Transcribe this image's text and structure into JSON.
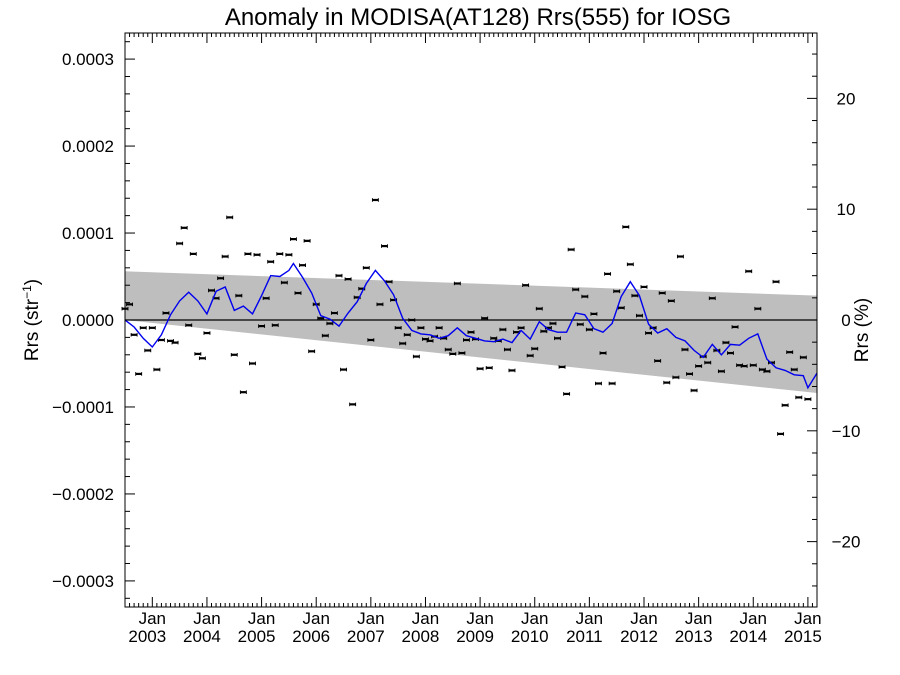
{
  "chart_data": {
    "type": "scatter",
    "title": "Anomaly in MODISA(AT128) Rrs(555) for IOSG",
    "ylabel_left_text": "Rrs (str",
    "ylabel_left_sup": "−1",
    "ylabel_left_close": ")",
    "ylabel_right": "Rrs (%)",
    "xlabel": "",
    "x_start": "2002-07",
    "x_end": "2015-03",
    "ylim": [
      -0.00033,
      0.00033
    ],
    "ylim_right": [
      -25.9,
      25.9
    ],
    "left_ticks": [
      {
        "value": 0.0003,
        "label": "0.0003"
      },
      {
        "value": 0.0002,
        "label": "0.0002"
      },
      {
        "value": 0.0001,
        "label": "0.0001"
      },
      {
        "value": 0.0,
        "label": "0.0000"
      },
      {
        "value": -0.0001,
        "label": "−0.0001"
      },
      {
        "value": -0.0002,
        "label": "−0.0002"
      },
      {
        "value": -0.0003,
        "label": "−0.0003"
      }
    ],
    "right_ticks": [
      {
        "value": 20,
        "label": "20"
      },
      {
        "value": 10,
        "label": "10"
      },
      {
        "value": 0,
        "label": "0"
      },
      {
        "value": -10,
        "label": "−10"
      },
      {
        "value": -20,
        "label": "−20"
      }
    ],
    "x_ticks": [
      {
        "date": "2003-01",
        "month": "Jan",
        "year": "2003"
      },
      {
        "date": "2004-01",
        "month": "Jan",
        "year": "2004"
      },
      {
        "date": "2005-01",
        "month": "Jan",
        "year": "2005"
      },
      {
        "date": "2006-01",
        "month": "Jan",
        "year": "2006"
      },
      {
        "date": "2007-01",
        "month": "Jan",
        "year": "2007"
      },
      {
        "date": "2008-01",
        "month": "Jan",
        "year": "2008"
      },
      {
        "date": "2009-01",
        "month": "Jan",
        "year": "2009"
      },
      {
        "date": "2010-01",
        "month": "Jan",
        "year": "2010"
      },
      {
        "date": "2011-01",
        "month": "Jan",
        "year": "2011"
      },
      {
        "date": "2012-01",
        "month": "Jan",
        "year": "2012"
      },
      {
        "date": "2013-01",
        "month": "Jan",
        "year": "2013"
      },
      {
        "date": "2014-01",
        "month": "Jan",
        "year": "2014"
      },
      {
        "date": "2015-01",
        "month": "Jan",
        "year": "2015"
      }
    ],
    "band": {
      "upper": [
        [
          "2002-07",
          5.6e-05
        ],
        [
          "2015-03",
          2.8e-05
        ]
      ],
      "lower": [
        [
          "2002-07",
          0.0
        ],
        [
          "2015-03",
          -8.4e-05
        ]
      ],
      "color": "#bebebe"
    },
    "zero_line": 0.0,
    "series": [
      {
        "kind": "points",
        "color": "#000000",
        "points": [
          [
            "2002-07",
            1.3e-05
          ],
          [
            "2002-08",
            1.8e-05
          ],
          [
            "2002-09",
            -1.7e-05
          ],
          [
            "2002-10",
            -6.2e-05
          ],
          [
            "2002-11",
            -9e-06
          ],
          [
            "2002-12",
            -3.5e-05
          ],
          [
            "2003-01",
            -9e-06
          ],
          [
            "2003-02",
            -5.7e-05
          ],
          [
            "2003-03",
            -2.3e-05
          ],
          [
            "2003-04",
            8e-06
          ],
          [
            "2003-05",
            -2.4e-05
          ],
          [
            "2003-06",
            -2.6e-05
          ],
          [
            "2003-07",
            8.8e-05
          ],
          [
            "2003-08",
            0.000106
          ],
          [
            "2003-09",
            -6e-06
          ],
          [
            "2003-10",
            7.6e-05
          ],
          [
            "2003-11",
            -3.9e-05
          ],
          [
            "2003-12",
            -4.4e-05
          ],
          [
            "2004-01",
            -1.5e-05
          ],
          [
            "2004-02",
            3.4e-05
          ],
          [
            "2004-03",
            2.5e-05
          ],
          [
            "2004-04",
            4.8e-05
          ],
          [
            "2004-05",
            7.3e-05
          ],
          [
            "2004-06",
            0.000118
          ],
          [
            "2004-07",
            -4e-05
          ],
          [
            "2004-08",
            2.8e-05
          ],
          [
            "2004-09",
            -8.3e-05
          ],
          [
            "2004-10",
            7.6e-05
          ],
          [
            "2004-11",
            -5e-05
          ],
          [
            "2004-12",
            7.5e-05
          ],
          [
            "2005-01",
            -7e-06
          ],
          [
            "2005-02",
            2.5e-05
          ],
          [
            "2005-03",
            6.7e-05
          ],
          [
            "2005-04",
            -6e-06
          ],
          [
            "2005-05",
            7.6e-05
          ],
          [
            "2005-06",
            4.3e-05
          ],
          [
            "2005-07",
            7.5e-05
          ],
          [
            "2005-08",
            9.3e-05
          ],
          [
            "2005-09",
            3.1e-05
          ],
          [
            "2005-10",
            6.3e-05
          ],
          [
            "2005-11",
            9.1e-05
          ],
          [
            "2005-12",
            -3.6e-05
          ],
          [
            "2006-01",
            1.8e-05
          ],
          [
            "2006-02",
            2e-06
          ],
          [
            "2006-03",
            -1.8e-05
          ],
          [
            "2006-04",
            -4e-06
          ],
          [
            "2006-05",
            8e-06
          ],
          [
            "2006-06",
            5.1e-05
          ],
          [
            "2006-07",
            -5.7e-05
          ],
          [
            "2006-08",
            4.7e-05
          ],
          [
            "2006-09",
            -9.7e-05
          ],
          [
            "2006-10",
            2.6e-05
          ],
          [
            "2006-11",
            3.6e-05
          ],
          [
            "2006-12",
            6e-05
          ],
          [
            "2007-01",
            -2.3e-05
          ],
          [
            "2007-02",
            0.000138
          ],
          [
            "2007-03",
            1.8e-05
          ],
          [
            "2007-04",
            8.5e-05
          ],
          [
            "2007-05",
            4.4e-05
          ],
          [
            "2007-06",
            2.3e-05
          ],
          [
            "2007-07",
            -9e-06
          ],
          [
            "2007-08",
            -2.7e-05
          ],
          [
            "2007-09",
            -1.7e-05
          ],
          [
            "2007-10",
            0.0
          ],
          [
            "2007-11",
            -4.2e-05
          ],
          [
            "2007-12",
            -9e-06
          ],
          [
            "2008-01",
            -2.2e-05
          ],
          [
            "2008-02",
            -2.4e-05
          ],
          [
            "2008-03",
            -1.9e-05
          ],
          [
            "2008-04",
            -9e-06
          ],
          [
            "2008-05",
            -2.1e-05
          ],
          [
            "2008-06",
            -3.4e-05
          ],
          [
            "2008-07",
            -3.9e-05
          ],
          [
            "2008-08",
            4.2e-05
          ],
          [
            "2008-09",
            -3.8e-05
          ],
          [
            "2008-10",
            -2.3e-05
          ],
          [
            "2008-11",
            -1.4e-05
          ],
          [
            "2008-12",
            -2.2e-05
          ],
          [
            "2009-01",
            -5.6e-05
          ],
          [
            "2009-02",
            2e-06
          ],
          [
            "2009-03",
            -5.5e-05
          ],
          [
            "2009-04",
            -2.1e-05
          ],
          [
            "2009-05",
            -2.4e-05
          ],
          [
            "2009-06",
            -1.1e-05
          ],
          [
            "2009-07",
            -3.4e-05
          ],
          [
            "2009-08",
            -5.8e-05
          ],
          [
            "2009-09",
            -1.4e-05
          ],
          [
            "2009-10",
            -9e-06
          ],
          [
            "2009-11",
            4e-05
          ],
          [
            "2009-12",
            -4.1e-05
          ],
          [
            "2010-01",
            -3.3e-05
          ],
          [
            "2010-02",
            1.3e-05
          ],
          [
            "2010-03",
            -1.3e-05
          ],
          [
            "2010-04",
            -9e-06
          ],
          [
            "2010-05",
            -4e-06
          ],
          [
            "2010-06",
            -2.1e-05
          ],
          [
            "2010-07",
            -5.4e-05
          ],
          [
            "2010-08",
            -8.5e-05
          ],
          [
            "2010-09",
            8.1e-05
          ],
          [
            "2010-10",
            3.5e-05
          ],
          [
            "2010-11",
            -5e-06
          ],
          [
            "2010-12",
            2.7e-05
          ],
          [
            "2011-01",
            -1.1e-05
          ],
          [
            "2011-02",
            7e-06
          ],
          [
            "2011-03",
            -7.3e-05
          ],
          [
            "2011-04",
            -3.8e-05
          ],
          [
            "2011-05",
            5.3e-05
          ],
          [
            "2011-06",
            -7.3e-05
          ],
          [
            "2011-07",
            3.3e-05
          ],
          [
            "2011-08",
            1.4e-05
          ],
          [
            "2011-09",
            0.000107
          ],
          [
            "2011-10",
            6.4e-05
          ],
          [
            "2011-11",
            2.8e-05
          ],
          [
            "2011-12",
            5e-06
          ],
          [
            "2012-01",
            3.8e-05
          ],
          [
            "2012-02",
            -1.5e-05
          ],
          [
            "2012-03",
            -9e-06
          ],
          [
            "2012-04",
            -4.7e-05
          ],
          [
            "2012-05",
            3.1e-05
          ],
          [
            "2012-06",
            -7.2e-05
          ],
          [
            "2012-07",
            2.2e-05
          ],
          [
            "2012-08",
            -6.6e-05
          ],
          [
            "2012-09",
            7.3e-05
          ],
          [
            "2012-10",
            -3.4e-05
          ],
          [
            "2012-11",
            -6.2e-05
          ],
          [
            "2012-12",
            -8.1e-05
          ],
          [
            "2013-01",
            -5.3e-05
          ],
          [
            "2013-02",
            -4.2e-05
          ],
          [
            "2013-03",
            -4.9e-05
          ],
          [
            "2013-04",
            2.5e-05
          ],
          [
            "2013-05",
            -3.5e-05
          ],
          [
            "2013-06",
            -5.9e-05
          ],
          [
            "2013-07",
            -2.6e-05
          ],
          [
            "2013-08",
            -3.8e-05
          ],
          [
            "2013-09",
            -8e-06
          ],
          [
            "2013-10",
            -5.2e-05
          ],
          [
            "2013-11",
            -5.3e-05
          ],
          [
            "2013-12",
            5.6e-05
          ],
          [
            "2014-01",
            -5.2e-05
          ],
          [
            "2014-02",
            1.3e-05
          ],
          [
            "2014-03",
            -5.7e-05
          ],
          [
            "2014-04",
            -5.9e-05
          ],
          [
            "2014-05",
            -4.9e-05
          ],
          [
            "2014-06",
            4.4e-05
          ],
          [
            "2014-07",
            -0.000131
          ],
          [
            "2014-08",
            -9.8e-05
          ],
          [
            "2014-09",
            -3.7e-05
          ],
          [
            "2014-10",
            -5.7e-05
          ],
          [
            "2014-11",
            -8.9e-05
          ],
          [
            "2014-12",
            -4.3e-05
          ],
          [
            "2015-01",
            -9.1e-05
          ]
        ]
      },
      {
        "kind": "line",
        "color": "#0000ee",
        "points": [
          [
            "2002-07",
            0.0
          ],
          [
            "2002-09",
            -8e-06
          ],
          [
            "2002-11",
            -2.1e-05
          ],
          [
            "2003-01",
            -3.1e-05
          ],
          [
            "2003-03",
            -1.7e-05
          ],
          [
            "2003-05",
            6e-06
          ],
          [
            "2003-07",
            2.2e-05
          ],
          [
            "2003-09",
            3.2e-05
          ],
          [
            "2003-11",
            2.2e-05
          ],
          [
            "2004-01",
            7e-06
          ],
          [
            "2004-03",
            3.3e-05
          ],
          [
            "2004-05",
            3.8e-05
          ],
          [
            "2004-07",
            1.1e-05
          ],
          [
            "2004-09",
            1.6e-05
          ],
          [
            "2004-11",
            7e-06
          ],
          [
            "2005-01",
            2.8e-05
          ],
          [
            "2005-03",
            5.1e-05
          ],
          [
            "2005-05",
            5e-05
          ],
          [
            "2005-07",
            5.7e-05
          ],
          [
            "2005-08",
            6.5e-05
          ],
          [
            "2005-10",
            4.9e-05
          ],
          [
            "2005-12",
            3.1e-05
          ],
          [
            "2006-02",
            5e-06
          ],
          [
            "2006-04",
            1e-06
          ],
          [
            "2006-06",
            -7e-06
          ],
          [
            "2006-08",
            8e-06
          ],
          [
            "2006-10",
            2.1e-05
          ],
          [
            "2006-12",
            4.2e-05
          ],
          [
            "2007-02",
            5.7e-05
          ],
          [
            "2007-04",
            4.5e-05
          ],
          [
            "2007-06",
            2.9e-05
          ],
          [
            "2007-08",
            2e-06
          ],
          [
            "2007-10",
            -1.2e-05
          ],
          [
            "2007-12",
            -1.6e-05
          ],
          [
            "2008-02",
            -1.7e-05
          ],
          [
            "2008-04",
            -2.1e-05
          ],
          [
            "2008-06",
            -1.8e-05
          ],
          [
            "2008-08",
            -9e-06
          ],
          [
            "2008-10",
            -1.8e-05
          ],
          [
            "2008-12",
            -2.1e-05
          ],
          [
            "2009-02",
            -2.4e-05
          ],
          [
            "2009-04",
            -2.5e-05
          ],
          [
            "2009-06",
            -2.2e-05
          ],
          [
            "2009-08",
            -2.6e-05
          ],
          [
            "2009-10",
            -1.2e-05
          ],
          [
            "2009-12",
            -2.2e-05
          ],
          [
            "2010-02",
            -2e-06
          ],
          [
            "2010-04",
            -1.1e-05
          ],
          [
            "2010-06",
            -1.4e-05
          ],
          [
            "2010-08",
            -1.4e-05
          ],
          [
            "2010-10",
            8e-06
          ],
          [
            "2010-12",
            6e-06
          ],
          [
            "2011-02",
            -1e-05
          ],
          [
            "2011-04",
            -1.4e-05
          ],
          [
            "2011-06",
            -4e-06
          ],
          [
            "2011-08",
            2.7e-05
          ],
          [
            "2011-10",
            4.4e-05
          ],
          [
            "2011-12",
            2.8e-05
          ],
          [
            "2012-02",
            -5e-06
          ],
          [
            "2012-04",
            -1.5e-05
          ],
          [
            "2012-06",
            -1e-05
          ],
          [
            "2012-08",
            -2e-05
          ],
          [
            "2012-10",
            -2.4e-05
          ],
          [
            "2012-12",
            -3.5e-05
          ],
          [
            "2013-02",
            -4.3e-05
          ],
          [
            "2013-04",
            -2.8e-05
          ],
          [
            "2013-06",
            -4e-05
          ],
          [
            "2013-08",
            -2.8e-05
          ],
          [
            "2013-10",
            -2.9e-05
          ],
          [
            "2013-12",
            -2.1e-05
          ],
          [
            "2014-02",
            -1.6e-05
          ],
          [
            "2014-04",
            -4.5e-05
          ],
          [
            "2014-06",
            -5.5e-05
          ],
          [
            "2014-08",
            -5.8e-05
          ],
          [
            "2014-10",
            -6.3e-05
          ],
          [
            "2014-12",
            -6.4e-05
          ],
          [
            "2015-01",
            -7.8e-05
          ],
          [
            "2015-03",
            -6.1e-05
          ]
        ]
      }
    ]
  }
}
